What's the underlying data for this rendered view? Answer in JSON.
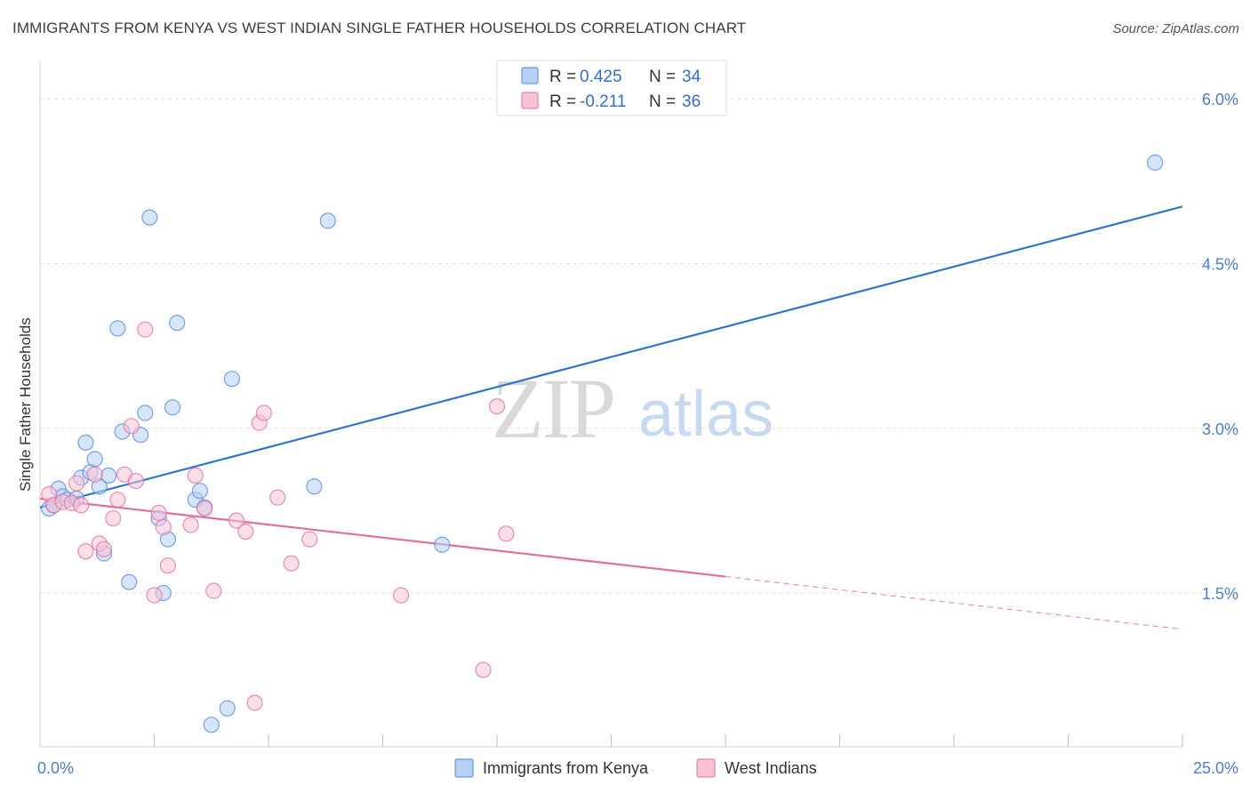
{
  "title": "IMMIGRANTS FROM KENYA VS WEST INDIAN SINGLE FATHER HOUSEHOLDS CORRELATION CHART",
  "source": "Source: ZipAtlas.com",
  "watermark": {
    "zip": "ZIP",
    "atlas": "atlas"
  },
  "chart_data": {
    "type": "scatter",
    "ylabel": "Single Father Households",
    "xlim": [
      0,
      25
    ],
    "ylim": [
      0.1,
      6.35
    ],
    "x_tick_labels": [
      {
        "value": 0,
        "label": "0.0%"
      },
      {
        "value": 25,
        "label": "25.0%"
      }
    ],
    "x_minor_ticks": [
      2.5,
      5,
      7.5,
      10,
      12.5,
      15,
      17.5,
      20,
      22.5,
      25
    ],
    "y_ticks": [
      {
        "value": 1.5,
        "label": "1.5%"
      },
      {
        "value": 3.0,
        "label": "3.0%"
      },
      {
        "value": 4.5,
        "label": "4.5%"
      },
      {
        "value": 6.0,
        "label": "6.0%"
      }
    ],
    "grid": true,
    "legend": {
      "placement": "top-center",
      "entries": [
        {
          "r_label": "R = ",
          "r_value": "0.425",
          "n_label": "N = ",
          "n_value": "34"
        },
        {
          "r_label": "R = ",
          "r_value": "-0.211",
          "n_label": "N = ",
          "n_value": "36"
        }
      ]
    },
    "series": [
      {
        "name": "Immigrants from Kenya",
        "color": "#4a86e8",
        "fill": "#b7d0f5",
        "points": [
          [
            0.2,
            2.27
          ],
          [
            0.3,
            2.3
          ],
          [
            0.4,
            2.45
          ],
          [
            0.5,
            2.38
          ],
          [
            0.6,
            2.35
          ],
          [
            0.8,
            2.36
          ],
          [
            0.9,
            2.55
          ],
          [
            1.0,
            2.87
          ],
          [
            1.1,
            2.6
          ],
          [
            1.2,
            2.72
          ],
          [
            1.3,
            2.47
          ],
          [
            1.4,
            1.86
          ],
          [
            1.5,
            2.57
          ],
          [
            1.7,
            3.91
          ],
          [
            1.8,
            2.97
          ],
          [
            1.95,
            1.6
          ],
          [
            2.2,
            2.94
          ],
          [
            2.3,
            3.14
          ],
          [
            2.4,
            4.92
          ],
          [
            2.6,
            2.18
          ],
          [
            2.7,
            1.5
          ],
          [
            2.8,
            1.99
          ],
          [
            2.9,
            3.19
          ],
          [
            3.0,
            3.96
          ],
          [
            3.4,
            2.35
          ],
          [
            3.5,
            2.43
          ],
          [
            3.6,
            2.28
          ],
          [
            3.75,
            0.3
          ],
          [
            4.1,
            0.45
          ],
          [
            4.2,
            3.45
          ],
          [
            6.0,
            2.47
          ],
          [
            6.3,
            4.89
          ],
          [
            8.8,
            1.94
          ],
          [
            24.4,
            5.42
          ]
        ],
        "trend": {
          "x": [
            0,
            25
          ],
          "y": [
            2.28,
            5.02
          ]
        }
      },
      {
        "name": "West Indians",
        "color": "#e86a9a",
        "fill": "#f6c3d6",
        "points": [
          [
            0.2,
            2.4
          ],
          [
            0.3,
            2.3
          ],
          [
            0.5,
            2.33
          ],
          [
            0.7,
            2.32
          ],
          [
            0.8,
            2.5
          ],
          [
            0.9,
            2.3
          ],
          [
            1.0,
            1.88
          ],
          [
            1.2,
            2.58
          ],
          [
            1.3,
            1.95
          ],
          [
            1.4,
            1.9
          ],
          [
            1.6,
            2.18
          ],
          [
            1.7,
            2.35
          ],
          [
            1.85,
            2.58
          ],
          [
            2.0,
            3.02
          ],
          [
            2.1,
            2.52
          ],
          [
            2.3,
            3.9
          ],
          [
            2.5,
            1.48
          ],
          [
            2.6,
            2.23
          ],
          [
            2.7,
            2.1
          ],
          [
            2.8,
            1.75
          ],
          [
            3.3,
            2.12
          ],
          [
            3.4,
            2.57
          ],
          [
            3.6,
            2.27
          ],
          [
            3.8,
            1.52
          ],
          [
            4.3,
            2.16
          ],
          [
            4.5,
            2.06
          ],
          [
            4.8,
            3.05
          ],
          [
            4.9,
            3.14
          ],
          [
            5.2,
            2.37
          ],
          [
            5.5,
            1.77
          ],
          [
            5.9,
            1.99
          ],
          [
            7.9,
            1.48
          ],
          [
            9.7,
            0.8
          ],
          [
            10.0,
            3.2
          ],
          [
            10.2,
            2.04
          ],
          [
            4.7,
            0.5
          ]
        ],
        "trend": {
          "x": [
            0,
            15
          ],
          "y": [
            2.36,
            1.65
          ]
        },
        "trend_dashed": {
          "x": [
            15,
            25
          ],
          "y": [
            1.65,
            1.17
          ]
        }
      }
    ]
  }
}
